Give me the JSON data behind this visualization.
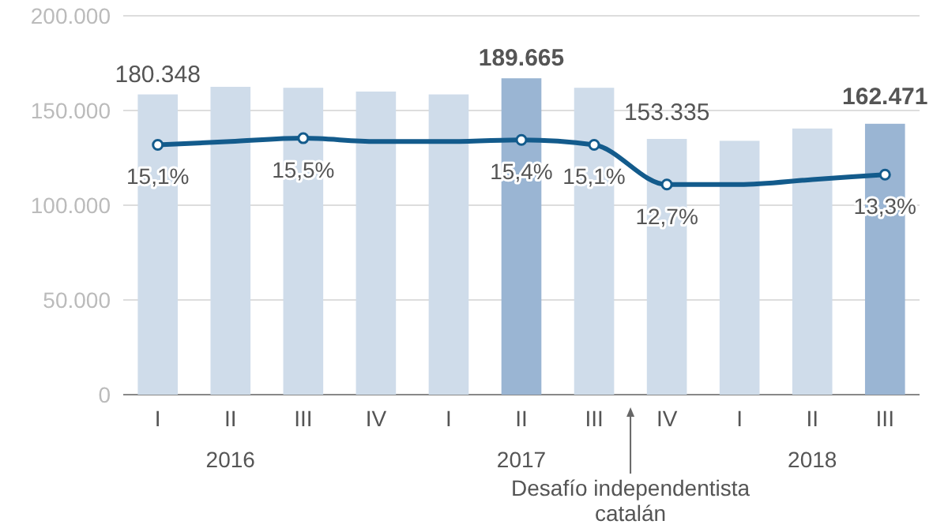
{
  "chart_data": {
    "type": "bar",
    "categories": [
      "I",
      "II\n2016",
      "III",
      "IV",
      "I",
      "II\n2017",
      "III",
      "IV",
      "I",
      "II\n2018",
      "III"
    ],
    "series": [
      {
        "colors": [
          "#cfdcea",
          "#cfdcea",
          "#cfdcea",
          "#cfdcea",
          "#cfdcea",
          "#9ab5d3",
          "#cfdcea",
          "#cfdcea",
          "#cfdcea",
          "#cfdcea",
          "#9ab5d3"
        ],
        "values": [
          158500,
          162500,
          162000,
          160000,
          158500,
          167000,
          162000,
          135000,
          134000,
          140500,
          143000
        ]
      },
      {
        "type": "line",
        "axis": "y2",
        "color": "#135b8c",
        "values": [
          15.1,
          15.3,
          15.5,
          15.3,
          15.3,
          15.4,
          15.1,
          12.7,
          12.7,
          13.0,
          13.3
        ],
        "value_labels": [
          "15,1%",
          null,
          "15,5%",
          null,
          null,
          "15,4%",
          "15,1%",
          "12,7%",
          null,
          null,
          "13,3%"
        ]
      }
    ],
    "ylim": [
      0,
      200000
    ],
    "yticks": [
      {
        "value": 0,
        "label": "0"
      },
      {
        "value": 50000,
        "label": "50.000"
      },
      {
        "value": 100000,
        "label": "100.000"
      },
      {
        "value": 150000,
        "label": "150.000"
      },
      {
        "value": 200000,
        "label": "200.000"
      }
    ],
    "y2lim": [
      0,
      22.9
    ],
    "tick_labels": "xy",
    "grid": "y",
    "marker": "circle",
    "annotations": [
      "Desafío independentista catalán",
      {
        "text": "180.348",
        "x": "I",
        "y": 158500
      },
      {
        "text": "189.665",
        "x": "II\n2017",
        "y": 167000
      },
      "153.335",
      "162.471"
    ]
  }
}
